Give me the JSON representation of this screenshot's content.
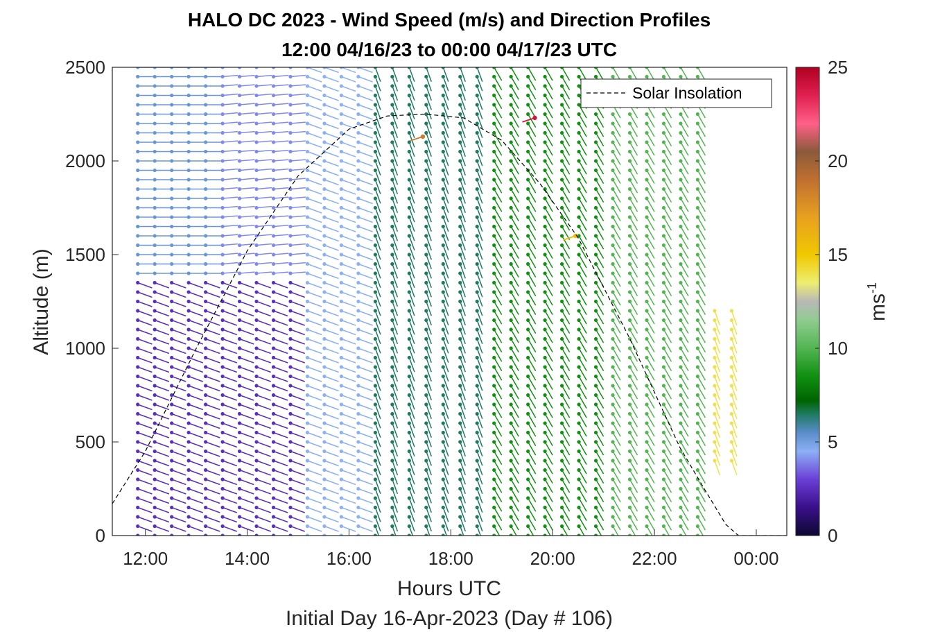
{
  "chart_data": {
    "type": "scatter",
    "title": "HALO DC 2023 - Wind Speed (m/s) and Direction Profiles",
    "subtitle": "12:00 04/16/23 to 00:00 04/17/23  UTC",
    "xlabel": "Hours UTC",
    "xlabel2": "Initial Day 16-Apr-2023 (Day # 106)",
    "ylabel": "Altitude (m)",
    "xlim": [
      11.35,
      24.6
    ],
    "ylim": [
      0,
      2500
    ],
    "xticks": [
      "12:00",
      "14:00",
      "16:00",
      "18:00",
      "20:00",
      "22:00",
      "00:00"
    ],
    "xtick_hours": [
      12,
      14,
      16,
      18,
      20,
      22,
      24
    ],
    "yticks": [
      0,
      500,
      1000,
      1500,
      2000,
      2500
    ],
    "grid": false,
    "legend": {
      "entries": [
        "Solar Insolation"
      ],
      "placement": "top-right"
    },
    "colorbar": {
      "label": "ms",
      "label_superscript": "-1",
      "range": [
        0,
        25
      ],
      "ticks": [
        0,
        5,
        10,
        15,
        20,
        25
      ],
      "stops": [
        [
          0,
          "#0d0830"
        ],
        [
          1.5,
          "#3a0f8a"
        ],
        [
          3,
          "#6a3fd6"
        ],
        [
          4.5,
          "#8cb0f5"
        ],
        [
          5.5,
          "#5a8cc9"
        ],
        [
          6.5,
          "#1e7a60"
        ],
        [
          7.2,
          "#006400"
        ],
        [
          8.5,
          "#109010"
        ],
        [
          10,
          "#52b552"
        ],
        [
          11.5,
          "#90cc90"
        ],
        [
          12.5,
          "#b8b8b8"
        ],
        [
          13.5,
          "#eeee70"
        ],
        [
          15,
          "#f0c800"
        ],
        [
          17,
          "#e8a020"
        ],
        [
          19,
          "#c07030"
        ],
        [
          20.5,
          "#8a5a3a"
        ],
        [
          22,
          "#ff6088"
        ],
        [
          23.5,
          "#e02050"
        ],
        [
          25,
          "#b00020"
        ]
      ]
    },
    "solar_insolation": {
      "hours": [
        11.35,
        12.0,
        13.0,
        14.0,
        15.0,
        16.0,
        16.75,
        17.5,
        18.25,
        19.0,
        19.75,
        20.5,
        21.5,
        22.5,
        23.0,
        23.4,
        23.65,
        24.6
      ],
      "altitude": [
        170,
        450,
        1000,
        1520,
        1920,
        2170,
        2240,
        2250,
        2230,
        2110,
        1880,
        1590,
        1060,
        470,
        240,
        60,
        0,
        0
      ]
    },
    "wind_profiles": {
      "profile_hours_start": 11.85,
      "profile_hours_step": 0.3333,
      "profile_count": 38,
      "altitude_levels_m": [
        0,
        50,
        100,
        150,
        200,
        250,
        300,
        350,
        400,
        450,
        500,
        550,
        600,
        650,
        700,
        750,
        800,
        850,
        900,
        950,
        1000,
        1050,
        1100,
        1150,
        1200,
        1250,
        1300,
        1350,
        1400,
        1450,
        1500,
        1550,
        1600,
        1650,
        1700,
        1750,
        1800,
        1850,
        1900,
        1950,
        2000,
        2050,
        2100,
        2150,
        2200,
        2250,
        2300,
        2350,
        2400,
        2450,
        2500
      ],
      "speed_regimes": [
        {
          "hours": [
            11.85,
            15.0
          ],
          "altitude": [
            0,
            1400
          ],
          "speed_ms": 2.5,
          "direction_deg": 250
        },
        {
          "hours": [
            11.85,
            13.3
          ],
          "altitude": [
            1400,
            2500
          ],
          "speed_ms": 5.2,
          "direction_deg": 270
        },
        {
          "hours": [
            13.3,
            15.0
          ],
          "altitude": [
            1400,
            2500
          ],
          "speed_ms": 4.0,
          "direction_deg": 275
        },
        {
          "hours": [
            15.0,
            16.5
          ],
          "altitude": [
            0,
            2500
          ],
          "speed_ms": 4.5,
          "direction_deg": 250
        },
        {
          "hours": [
            16.5,
            18.7
          ],
          "altitude": [
            0,
            2500
          ],
          "speed_ms": 6.5,
          "direction_deg": 200
        },
        {
          "hours": [
            18.7,
            21.0
          ],
          "altitude": [
            0,
            2500
          ],
          "speed_ms": 8.5,
          "direction_deg": 210
        },
        {
          "hours": [
            21.0,
            23.0
          ],
          "altitude": [
            0,
            2500
          ],
          "speed_ms": 10.0,
          "direction_deg": 210
        },
        {
          "hours": [
            23.0,
            23.6
          ],
          "altitude": [
            400,
            1200
          ],
          "speed_ms": 14.0,
          "direction_deg": 200
        }
      ],
      "notable_points": [
        {
          "hour": 17.45,
          "altitude": 2130,
          "speed_ms": 18.5
        },
        {
          "hour": 19.65,
          "altitude": 2230,
          "speed_ms": 24.0
        },
        {
          "hour": 20.45,
          "altitude": 1600,
          "speed_ms": 15.5
        }
      ]
    }
  }
}
